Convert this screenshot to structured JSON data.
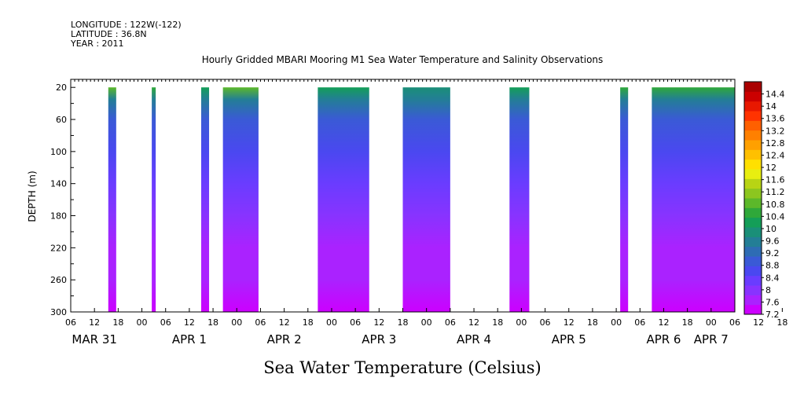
{
  "header": {
    "longitude": "LONGITUDE : 122W(-122)",
    "latitude": "LATITUDE : 36.8N",
    "year": "YEAR : 2011"
  },
  "chart_data": {
    "type": "heatmap",
    "title": "Hourly Gridded MBARI Mooring M1 Sea Water Temperature and Salinity Observations",
    "xlabel": "",
    "ylabel": "DEPTH (m)",
    "colorbar_label": "Sea Water Temperature (Celsius)",
    "x_unit": "hours since MAR 31 2011 00:00",
    "xlim": [
      6,
      174
    ],
    "ylim": [
      300,
      10
    ],
    "y_ticks": [
      20,
      60,
      100,
      140,
      180,
      220,
      260,
      300
    ],
    "x_hour_ticks": [
      "06",
      "12",
      "18",
      "00",
      "06",
      "12",
      "18",
      "00",
      "06",
      "12",
      "18",
      "00",
      "06",
      "12",
      "18",
      "00",
      "06",
      "12",
      "18",
      "00",
      "06",
      "12",
      "18",
      "00",
      "06",
      "12",
      "18",
      "00",
      "06",
      "12",
      "18",
      "00",
      "06"
    ],
    "date_labels": [
      {
        "label": "MAR 31",
        "hour": 12
      },
      {
        "label": "APR  1",
        "hour": 36
      },
      {
        "label": "APR  2",
        "hour": 60
      },
      {
        "label": "APR  3",
        "hour": 84
      },
      {
        "label": "APR  4",
        "hour": 108
      },
      {
        "label": "APR  5",
        "hour": 132
      },
      {
        "label": "APR  6",
        "hour": 156
      },
      {
        "label": "APR  7",
        "hour": 168
      }
    ],
    "data_segments": [
      {
        "start": 15.5,
        "end": 17.5,
        "surface_temp": 12.0
      },
      {
        "start": 26.5,
        "end": 27.5,
        "surface_temp": 11.4
      },
      {
        "start": 39.0,
        "end": 41.0,
        "surface_temp": 11.2
      },
      {
        "start": 44.5,
        "end": 53.5,
        "surface_temp": 11.8
      },
      {
        "start": 68.5,
        "end": 81.5,
        "surface_temp": 11.2
      },
      {
        "start": 90.0,
        "end": 102.0,
        "surface_temp": 10.6
      },
      {
        "start": 117.0,
        "end": 122.0,
        "surface_temp": 10.8
      },
      {
        "start": 145.0,
        "end": 147.0,
        "surface_temp": 11.4
      },
      {
        "start": 153.0,
        "end": 174.0,
        "surface_temp": 11.6
      }
    ],
    "colorbar": {
      "min": 7.2,
      "max": 14.8,
      "step": 0.4,
      "labels": [
        "14.4",
        "14",
        "13.6",
        "13.2",
        "12.8",
        "12.4",
        "12",
        "11.6",
        "11.2",
        "10.8",
        "10.4",
        "10",
        "9.6",
        "9.2",
        "8.8",
        "8.4",
        "8",
        "7.6",
        "7.2"
      ],
      "colors": [
        "#cc00ff",
        "#aa22ff",
        "#8833ff",
        "#6a3cff",
        "#4a48f0",
        "#3a5ad6",
        "#2e6cb4",
        "#237e96",
        "#1a8f78",
        "#149e58",
        "#2fa83a",
        "#5cb82a",
        "#8cc61f",
        "#b8d414",
        "#e8ee10",
        "#ffe000",
        "#ffc000",
        "#ffa000",
        "#ff8000",
        "#ff6000",
        "#ff3300",
        "#e81800",
        "#cc0000",
        "#aa0000"
      ]
    },
    "depth_profile": [
      {
        "depth": 20,
        "temp_below_surface": 0.0
      },
      {
        "depth": 35,
        "temp": 10.2
      },
      {
        "depth": 60,
        "temp": 9.5
      },
      {
        "depth": 100,
        "temp": 9.0
      },
      {
        "depth": 140,
        "temp": 8.7
      },
      {
        "depth": 180,
        "temp": 8.3
      },
      {
        "depth": 220,
        "temp": 8.0
      },
      {
        "depth": 260,
        "temp": 7.7
      },
      {
        "depth": 300,
        "temp": 7.3
      }
    ]
  }
}
